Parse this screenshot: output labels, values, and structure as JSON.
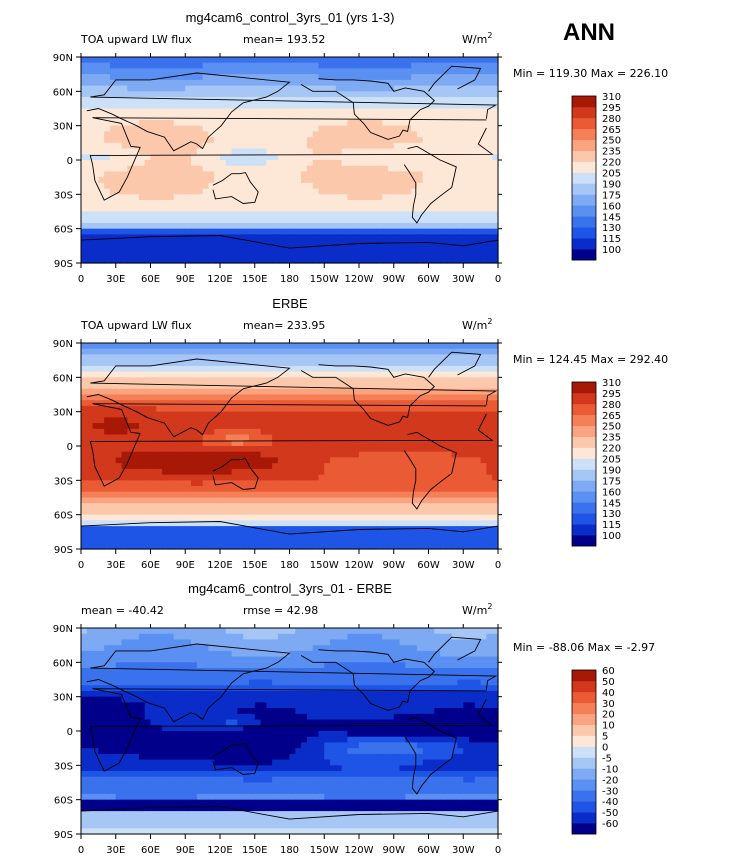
{
  "season": "ANN",
  "chart_data": [
    {
      "type": "heatmap",
      "title": "mg4cam6_control_3yrs_01 (yrs 1-3)",
      "left_label": "TOA upward LW flux",
      "mean_text": "mean= 193.52",
      "units": "W/m",
      "units_sup": "2",
      "minmax_text": "Min = 119.30 Max = 226.10",
      "x_ticks": [
        "0",
        "30E",
        "60E",
        "90E",
        "120E",
        "150E",
        "180",
        "150W",
        "120W",
        "90W",
        "60W",
        "30W",
        "0"
      ],
      "y_ticks": [
        "90N",
        "60N",
        "30N",
        "0",
        "30S",
        "60S",
        "90S"
      ],
      "levels": [
        100,
        115,
        130,
        145,
        160,
        175,
        190,
        205,
        220,
        235,
        250,
        265,
        280,
        295,
        310
      ],
      "colors": [
        "#00008a",
        "#0a2cc8",
        "#1f55e6",
        "#3a72ee",
        "#5a90f2",
        "#7eaaf4",
        "#a6c6f6",
        "#cce0f8",
        "#fde8d8",
        "#fcc8ac",
        "#fba27e",
        "#f57f56",
        "#ea5a34",
        "#d2381c",
        "#a81806"
      ],
      "field": "model"
    },
    {
      "type": "heatmap",
      "title": "ERBE",
      "left_label": "TOA upward LW flux",
      "mean_text": "mean= 233.95",
      "units": "W/m",
      "units_sup": "2",
      "minmax_text": "Min = 124.45 Max = 292.40",
      "x_ticks": [
        "0",
        "30E",
        "60E",
        "90E",
        "120E",
        "150E",
        "180",
        "150W",
        "120W",
        "90W",
        "60W",
        "30W",
        "0"
      ],
      "y_ticks": [
        "90N",
        "60N",
        "30N",
        "0",
        "30S",
        "60S",
        "90S"
      ],
      "levels": [
        100,
        115,
        130,
        145,
        160,
        175,
        190,
        205,
        220,
        235,
        250,
        265,
        280,
        295,
        310
      ],
      "colors": [
        "#00008a",
        "#0a2cc8",
        "#1f55e6",
        "#3a72ee",
        "#5a90f2",
        "#7eaaf4",
        "#a6c6f6",
        "#cce0f8",
        "#fde8d8",
        "#fcc8ac",
        "#fba27e",
        "#f57f56",
        "#ea5a34",
        "#d2381c",
        "#a81806"
      ],
      "field": "obs"
    },
    {
      "type": "heatmap",
      "title": "mg4cam6_control_3yrs_01 - ERBE",
      "left_label": "mean = -40.42",
      "mean_text": "rmse = 42.98",
      "units": "W/m",
      "units_sup": "2",
      "minmax_text": "Min = -88.06 Max = -2.97",
      "x_ticks": [
        "0",
        "30E",
        "60E",
        "90E",
        "120E",
        "150E",
        "180",
        "150W",
        "120W",
        "90W",
        "60W",
        "30W",
        "0"
      ],
      "y_ticks": [
        "90N",
        "60N",
        "30N",
        "0",
        "30S",
        "60S",
        "90S"
      ],
      "levels": [
        -60,
        -50,
        -40,
        -30,
        -20,
        -10,
        -5,
        0,
        5,
        10,
        20,
        30,
        40,
        50,
        60
      ],
      "colors": [
        "#00008a",
        "#0a2cc8",
        "#1f55e6",
        "#3a72ee",
        "#5a90f2",
        "#7eaaf4",
        "#a6c6f6",
        "#cce0f8",
        "#fde8d8",
        "#fcc8ac",
        "#fba27e",
        "#f57f56",
        "#ea5a34",
        "#d2381c",
        "#a81806"
      ],
      "field": "diff"
    }
  ]
}
